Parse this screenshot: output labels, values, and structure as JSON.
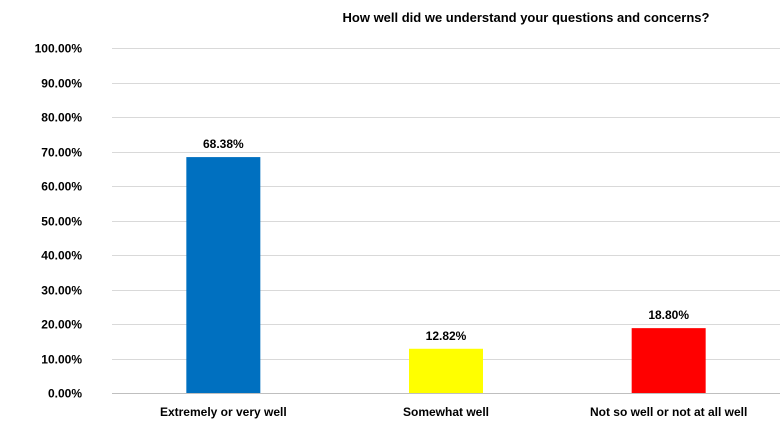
{
  "chart_data": {
    "type": "bar",
    "title": "How well did we understand your questions and concerns?",
    "xlabel": "",
    "ylabel": "",
    "categories": [
      "Extremely or very well",
      "Somewhat well",
      "Not so well or not at all well"
    ],
    "values": [
      68.38,
      12.82,
      18.8
    ],
    "value_labels": [
      "68.38%",
      "12.82%",
      "18.80%"
    ],
    "colors": [
      "#0070c0",
      "#ffff00",
      "#ff0000"
    ],
    "ylim": [
      0,
      100
    ],
    "yticks": [
      0,
      10,
      20,
      30,
      40,
      50,
      60,
      70,
      80,
      90,
      100
    ],
    "ytick_labels": [
      "0.00%",
      "10.00%",
      "20.00%",
      "30.00%",
      "40.00%",
      "50.00%",
      "60.00%",
      "70.00%",
      "80.00%",
      "90.00%",
      "100.00%"
    ],
    "grid": true,
    "legend": "none"
  }
}
